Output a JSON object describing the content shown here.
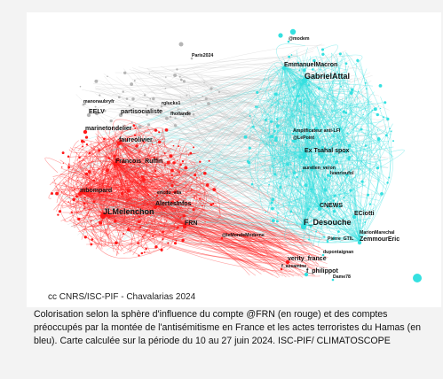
{
  "figure": {
    "credit": "cc CNRS/ISC-PIF - Chavalarias 2024",
    "colors": {
      "red_cluster": "#ff1a1a",
      "blue_cluster": "#35e0e0",
      "grey_edges": "#b5b5b5"
    },
    "nodes": [
      {
        "label": "Paris2024",
        "group": "grey",
        "size": "small"
      },
      {
        "label": "@modem",
        "group": "blue",
        "size": "small"
      },
      {
        "label": "EmmanuelMacron",
        "group": "blue",
        "size": "medium"
      },
      {
        "label": "GabrielAttal",
        "group": "blue",
        "size": "large"
      },
      {
        "label": "manonaubryfr",
        "group": "grey",
        "size": "small"
      },
      {
        "label": "EELV",
        "group": "grey",
        "size": "medium"
      },
      {
        "label": "partisocialiste",
        "group": "grey",
        "size": "medium"
      },
      {
        "label": "rglucks1",
        "group": "grey",
        "size": "small"
      },
      {
        "label": "fhollande",
        "group": "grey",
        "size": "small"
      },
      {
        "label": "marinetondelier",
        "group": "red",
        "size": "medium"
      },
      {
        "label": "faureolivier",
        "group": "red",
        "size": "medium"
      },
      {
        "label": "Amplificateur anti-LFI",
        "group": "blue",
        "size": "small"
      },
      {
        "label": "@LePoint",
        "group": "blue",
        "size": "small"
      },
      {
        "label": "Ex Tsahal spox",
        "group": "blue",
        "size": "medium"
      },
      {
        "label": "Francois_Ruffin",
        "group": "red",
        "size": "medium"
      },
      {
        "label": "aurelien_veron",
        "group": "blue",
        "size": "small"
      },
      {
        "label": "Ivanrioufol",
        "group": "blue",
        "size": "small"
      },
      {
        "label": "mbompard",
        "group": "red",
        "size": "medium"
      },
      {
        "label": "ericdu_vila",
        "group": "red",
        "size": "small"
      },
      {
        "label": "AlertesInfos",
        "group": "red",
        "size": "medium"
      },
      {
        "label": "JLMelenchon",
        "group": "red",
        "size": "large"
      },
      {
        "label": "FRN",
        "group": "red",
        "size": "medium"
      },
      {
        "label": "CNEWS",
        "group": "blue",
        "size": "medium"
      },
      {
        "label": "ECiotti",
        "group": "blue",
        "size": "medium"
      },
      {
        "label": "F_Desouche",
        "group": "blue",
        "size": "large"
      },
      {
        "label": "MarionMarechal",
        "group": "blue",
        "size": "small"
      },
      {
        "label": "ZemmourEric",
        "group": "blue",
        "size": "medium"
      },
      {
        "label": "@leMondeModerne",
        "group": "red",
        "size": "small"
      },
      {
        "label": "Pierre_GTIL",
        "group": "blue",
        "size": "small"
      },
      {
        "label": "dupontaignan",
        "group": "blue",
        "size": "small"
      },
      {
        "label": "verity_france",
        "group": "red",
        "size": "medium"
      },
      {
        "label": "f_assamine",
        "group": "red",
        "size": "small"
      },
      {
        "label": "f_philippot",
        "group": "blue",
        "size": "medium"
      },
      {
        "label": "Dame78",
        "group": "blue",
        "size": "small"
      }
    ]
  },
  "caption": "Colorisation selon la sphère d'influence du compte @FRN (en rouge) et des comptes préoccupés par la montée de l'antisémitisme en France et les actes terroristes du Hamas (en bleu). Carte calculée sur la période du 10 au 27 juin 2024.  ISC-PIF/ CLIMATOSCOPE"
}
